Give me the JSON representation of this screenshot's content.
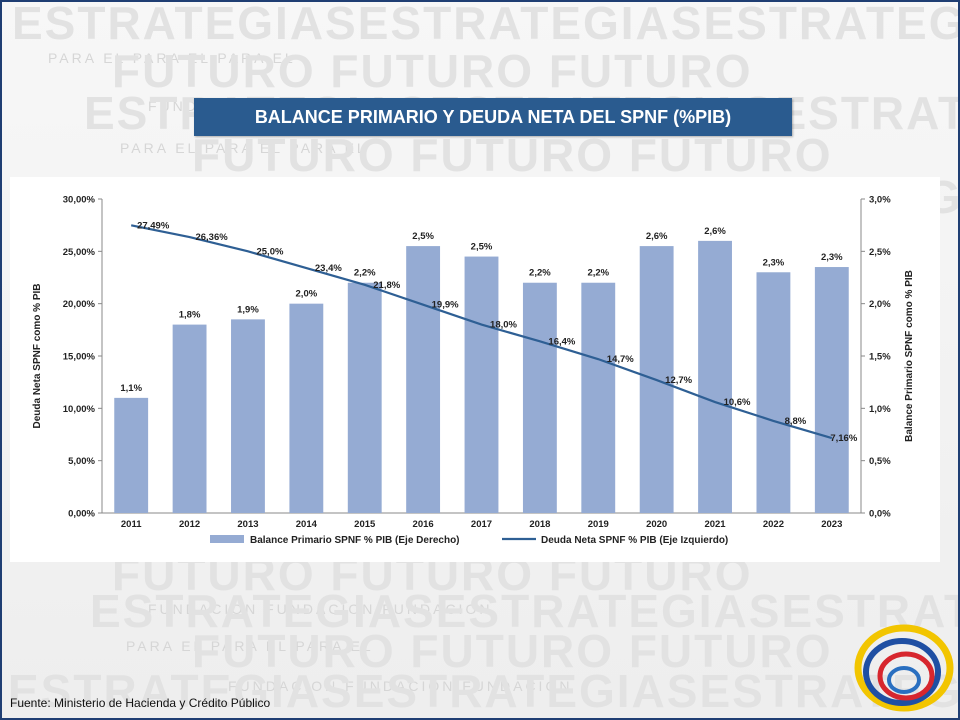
{
  "slide": {
    "title": "BALANCE PRIMARIO Y DEUDA NETA DEL SPNF (%PIB)",
    "source": "Fuente: Ministerio de Hacienda y Crédito Público"
  },
  "watermark": {
    "big_words": [
      "ESTRATEGIAS",
      "FUTURO"
    ],
    "small_words": [
      "PARA EL",
      "FUNDACION"
    ]
  },
  "colors": {
    "title_bg": "#2a5b8f",
    "bar": "#95abd3",
    "line": "#2e5f94",
    "frame": "#1f3e73"
  },
  "chart_data": {
    "type": "bar",
    "categories": [
      "2011",
      "2012",
      "2013",
      "2014",
      "2015",
      "2016",
      "2017",
      "2018",
      "2019",
      "2020",
      "2021",
      "2022",
      "2023"
    ],
    "series": [
      {
        "name": "Balance Primario SPNF % PIB (Eje Derecho)",
        "type": "bar",
        "axis": "right",
        "values": [
          1.1,
          1.8,
          1.85,
          2.0,
          2.2,
          2.55,
          2.45,
          2.2,
          2.2,
          2.55,
          2.6,
          2.3,
          2.35
        ],
        "labels": [
          "1,1%",
          "1,8%",
          "1,9%",
          "2,0%",
          "2,2%",
          "2,5%",
          "2,5%",
          "2,2%",
          "2,2%",
          "2,6%",
          "2,6%",
          "2,3%",
          "2,3%"
        ]
      },
      {
        "name": "Deuda Neta SPNF % PIB (Eje Izquierdo)",
        "type": "line",
        "axis": "left",
        "values": [
          27.49,
          26.36,
          25.0,
          23.4,
          21.8,
          19.9,
          18.0,
          16.4,
          14.7,
          12.7,
          10.6,
          8.8,
          7.16
        ],
        "labels": [
          "27,49%",
          "26,36%",
          "25,0%",
          "23,4%",
          "21,8%",
          "19,9%",
          "18,0%",
          "16,4%",
          "14,7%",
          "12,7%",
          "10,6%",
          "8,8%",
          "7,16%"
        ]
      }
    ],
    "left_axis": {
      "label": "Deuda Neta SPNF como % PIB",
      "ylim": [
        0,
        30
      ],
      "ticks": [
        "0,00%",
        "5,00%",
        "10,00%",
        "15,00%",
        "20,00%",
        "25,00%",
        "30,00%"
      ]
    },
    "right_axis": {
      "label": "Balance Primario SPNF como % PIB",
      "ylim": [
        0,
        3
      ],
      "ticks": [
        "0,0%",
        "0,5%",
        "1,0%",
        "1,5%",
        "2,0%",
        "2,5%",
        "3,0%"
      ]
    },
    "legend_position": "bottom",
    "grid": false
  }
}
